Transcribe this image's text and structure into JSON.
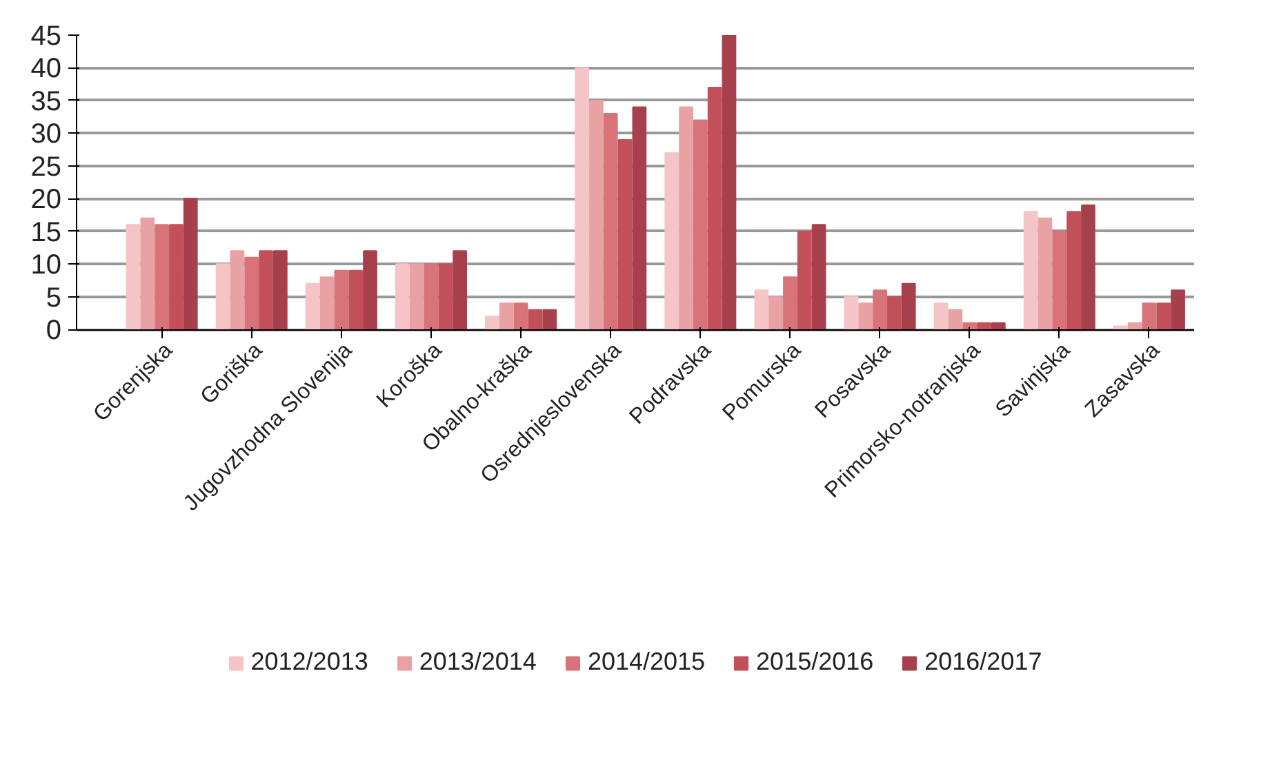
{
  "chart_data": {
    "type": "bar",
    "categories": [
      "Gorenjska",
      "Goriška",
      "Jugovzhodna Slovenija",
      "Koroška",
      "Obalno-kraška",
      "Osrednjeslovenska",
      "Podravska",
      "Pomurska",
      "Posavska",
      "Primorsko-notranjska",
      "Savinjska",
      "Zasavska"
    ],
    "series": [
      {
        "name": "2012/2013",
        "color": "#f4c4c6",
        "values": [
          16,
          10,
          7,
          10,
          2,
          40,
          27,
          6,
          5,
          4,
          18,
          0.5
        ]
      },
      {
        "name": "2013/2014",
        "color": "#e8a2a4",
        "values": [
          17,
          12,
          8,
          10,
          4,
          35,
          34,
          5,
          4,
          3,
          17,
          1
        ]
      },
      {
        "name": "2014/2015",
        "color": "#d8737a",
        "values": [
          16,
          11,
          9,
          10,
          4,
          33,
          32,
          8,
          6,
          1,
          15,
          4
        ]
      },
      {
        "name": "2015/2016",
        "color": "#c2505b",
        "values": [
          16,
          12,
          9,
          10,
          3,
          29,
          37,
          15,
          5,
          1,
          18,
          4
        ]
      },
      {
        "name": "2016/2017",
        "color": "#a8404c",
        "values": [
          20,
          12,
          12,
          12,
          3,
          34,
          45,
          16,
          7,
          1,
          19,
          6
        ]
      }
    ],
    "ylim": [
      0,
      45
    ],
    "yticks": [
      0,
      5,
      10,
      15,
      20,
      25,
      30,
      35,
      40,
      45
    ],
    "grid": "y",
    "legend": "bottom"
  }
}
